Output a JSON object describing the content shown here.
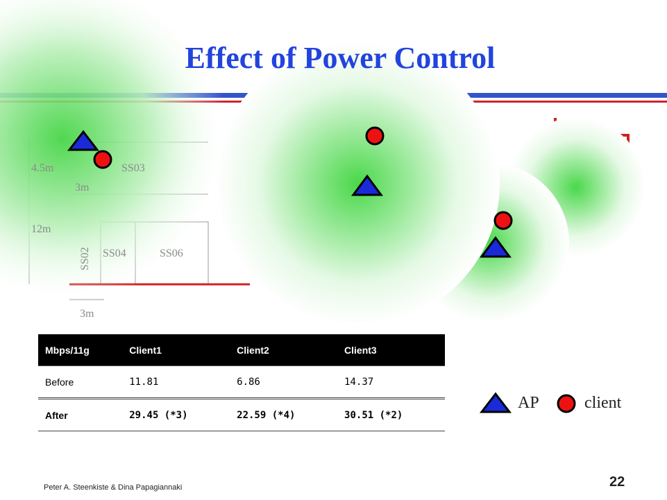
{
  "header": {
    "title": "Effect of Power Control"
  },
  "floor_plan": {
    "labels": [
      "4.5m",
      "SS03",
      "3m",
      "12m",
      "SS02",
      "SS04",
      "SS06",
      "3m"
    ]
  },
  "table": {
    "header": [
      "Mbps/11g",
      "Client1",
      "Client2",
      "Client3"
    ],
    "rows": [
      [
        "Before",
        "11.81",
        "6.86",
        "14.37"
      ],
      [
        "After",
        "29.45 (*3)",
        "22.59 (*4)",
        "30.51 (*2)"
      ]
    ]
  },
  "legend": {
    "ap": "AP",
    "client": "client"
  },
  "footer": {
    "authors": "Peter A. Steenkiste & Dina Papagiannaki",
    "page": "22"
  }
}
